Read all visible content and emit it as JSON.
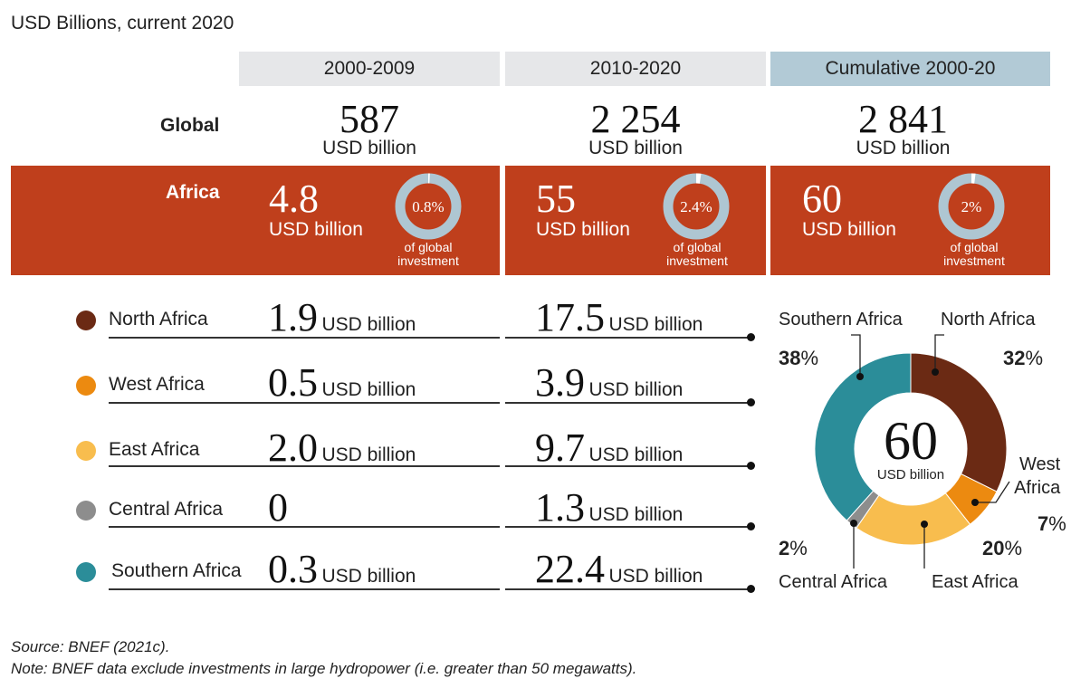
{
  "header": {
    "unit_note": "USD Billions, current 2020"
  },
  "columns": [
    "2000-2009",
    "2010-2020",
    "Cumulative 2000-20"
  ],
  "global": {
    "label": "Global",
    "values": [
      "587",
      "2 254",
      "2 841"
    ],
    "unit": "USD billion"
  },
  "africa": {
    "label": "Africa",
    "values": [
      "4.8",
      "55",
      "60"
    ],
    "unit": "USD billion",
    "share_labels": [
      "0.8%",
      "2.4%",
      "2%"
    ],
    "share_values": [
      0.8,
      2.4,
      2
    ],
    "share_caption_1": "of global",
    "share_caption_2": "investment"
  },
  "regions": [
    {
      "name": "North Africa",
      "color": "#6b2a14",
      "v1": "1.9",
      "v2": "17.5",
      "u1": "USD billion",
      "u2": "USD billion"
    },
    {
      "name": "West Africa",
      "color": "#ec8a10",
      "v1": "0.5",
      "v2": "3.9",
      "u1": "USD billion",
      "u2": "USD billion"
    },
    {
      "name": "East Africa",
      "color": "#f8bd4e",
      "v1": "2.0",
      "v2": "9.7",
      "u1": "USD billion",
      "u2": "USD billion"
    },
    {
      "name": "Central Africa",
      "color": "#8d8d8d",
      "v1": "0",
      "v2": "1.3",
      "u1": "",
      "u2": "USD billion"
    },
    {
      "name": "Southern Africa",
      "color": "#2b8d99",
      "v1": "0.3",
      "v2": "22.4",
      "u1": "USD billion",
      "u2": "USD billion"
    }
  ],
  "chart_data": {
    "type": "pie",
    "center_value": "60",
    "center_unit": "USD billion",
    "slices": [
      {
        "name": "North Africa",
        "value": 32,
        "label": "32",
        "color": "#6b2a14"
      },
      {
        "name": "West Africa",
        "value": 7,
        "label": "7",
        "color": "#ec8a10"
      },
      {
        "name": "East Africa",
        "value": 20,
        "label": "20",
        "color": "#f8bd4e"
      },
      {
        "name": "Central Africa",
        "value": 2,
        "label": "2",
        "color": "#8d8d8d"
      },
      {
        "name": "Southern Africa",
        "value": 38,
        "label": "38",
        "color": "#2b8d99"
      }
    ],
    "pct_symbol": "%",
    "west_line1": "West",
    "west_line2": "Africa"
  },
  "footer": {
    "source": "Source: BNEF (2021c).",
    "note": "Note: BNEF data exclude investments in large hydropower (i.e. greater than 50 megawatts)."
  }
}
